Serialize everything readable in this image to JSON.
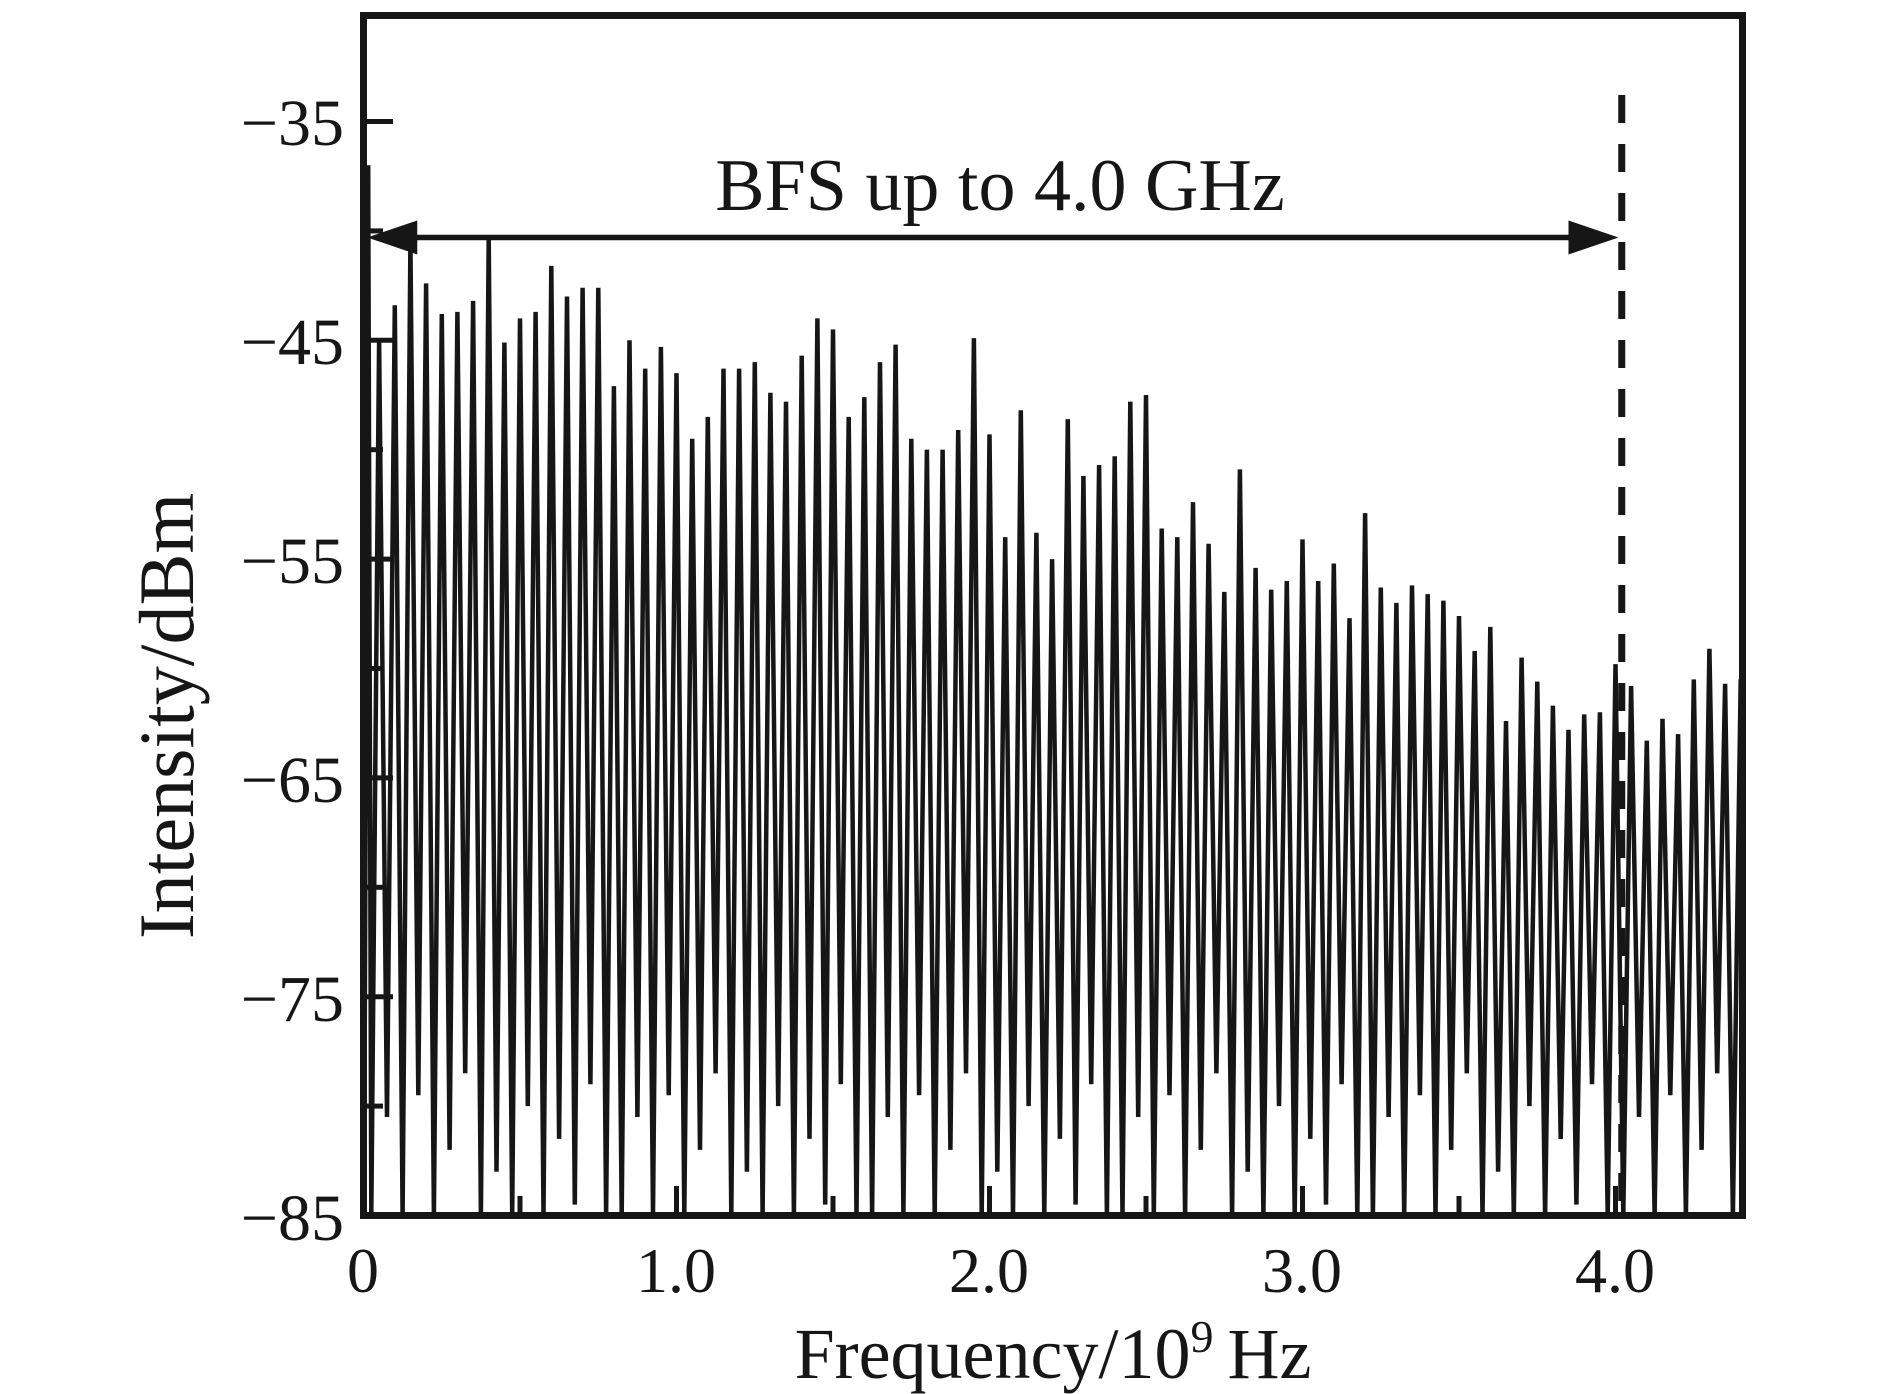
{
  "figure": {
    "background": "#ffffff",
    "ink_color": "#161616"
  },
  "annotation": {
    "label": "BFS up to 4.0 GHz",
    "arrow_level_dbm": -40.3,
    "arrow_from_ghz": 0.012,
    "arrow_to_ghz": 4.0
  },
  "axes": {
    "ylabel": "Intensity/dBm",
    "xlabel_base": "Frequency/10",
    "xlabel_sup": "9",
    "xlabel_tail": "Hz",
    "ytick_labels": [
      "−35",
      "−45",
      "−55",
      "−65",
      "−75",
      "−85"
    ],
    "yticks": [
      -35,
      -45,
      -55,
      -65,
      -75,
      -85
    ],
    "yticks_minor": [
      -40,
      -50,
      -60,
      -70,
      -80
    ],
    "xtick_labels": [
      "0",
      "1.0",
      "2.0",
      "3.0",
      "4.0"
    ],
    "xticks": [
      0,
      1.0,
      2.0,
      3.0,
      4.0
    ],
    "xticks_minor": [
      0.5,
      1.5,
      2.5,
      3.5
    ],
    "xlim": [
      0,
      4.42
    ],
    "ylim": [
      -85,
      -30
    ],
    "grid": false,
    "legend": "none"
  },
  "chart_data": {
    "type": "line",
    "title": "",
    "xlabel": "Frequency/10^9 Hz",
    "ylabel": "Intensity/dBm",
    "xlim": [
      0,
      4.42
    ],
    "ylim": [
      -85,
      -30
    ],
    "description": "Optical frequency comb spectrum: teeth every 0.05 GHz whose peak envelope decays from about -40 dBm to about -62 dBm; dashed marker and double arrow indicate BFS up to 4.0 GHz.",
    "comb_spacing_ghz": 0.05,
    "start_offset_ghz": 0.015,
    "bfs_marker_ghz": 4.02,
    "peaks_dbm": [
      -37.0,
      -45.0,
      -43.4,
      -40.5,
      -42.4,
      -43.8,
      -43.7,
      -43.2,
      -40.3,
      -45.1,
      -44.0,
      -43.7,
      -41.6,
      -43.0,
      -42.6,
      -42.6,
      -47.1,
      -45.0,
      -46.3,
      -45.3,
      -46.5,
      -49.5,
      -48.5,
      -46.3,
      -46.3,
      -46.0,
      -47.4,
      -47.8,
      -45.7,
      -44.0,
      -44.5,
      -48.5,
      -47.6,
      -46.0,
      -45.2,
      -49.5,
      -50.0,
      -50.0,
      -49.1,
      -44.9,
      -49.3,
      -54.0,
      -48.2,
      -53.8,
      -55.0,
      -48.6,
      -51.2,
      -50.7,
      -50.3,
      -47.8,
      -47.5,
      -53.6,
      -54.0,
      -52.4,
      -54.3,
      -56.5,
      -50.9,
      -55.4,
      -56.4,
      -56.0,
      -54.1,
      -56.0,
      -55.2,
      -57.7,
      -52.9,
      -56.3,
      -57.0,
      -56.2,
      -56.6,
      -56.9,
      -57.6,
      -59.2,
      -58.1,
      -62.4,
      -59.5,
      -60.6,
      -61.7,
      -62.8,
      -62.1,
      -62.0,
      -59.8,
      -60.8,
      -63.3,
      -62.3,
      -63.0,
      -60.5,
      -59.1,
      -60.7,
      -60.5
    ],
    "valleys_dbm": [
      -85,
      -80.5,
      -85,
      -79.5,
      -85,
      -82,
      -78.5,
      -85,
      -83,
      -85,
      -80,
      -85,
      -81.5,
      -84.5,
      -79,
      -85,
      -85,
      -80.5,
      -85,
      -79.5,
      -85,
      -82,
      -78.5,
      -85,
      -83,
      -85,
      -80,
      -85,
      -81.5,
      -84.5,
      -79,
      -85,
      -85,
      -80.5,
      -85,
      -79.5,
      -85,
      -82,
      -78.5,
      -85,
      -83,
      -85,
      -80,
      -85,
      -81.5,
      -84.5,
      -79,
      -85,
      -85,
      -80.5,
      -85,
      -79.5,
      -85,
      -82,
      -78.5,
      -85,
      -83,
      -85,
      -80,
      -85,
      -81.5,
      -84.5,
      -79,
      -85,
      -85,
      -80.5,
      -85,
      -79.5,
      -85,
      -82,
      -78.5,
      -85,
      -83,
      -85,
      -80,
      -85,
      -81.5,
      -84.5,
      -79,
      -85,
      -85,
      -80.5,
      -85,
      -79.5,
      -85,
      -82,
      -78.5,
      -85
    ]
  }
}
